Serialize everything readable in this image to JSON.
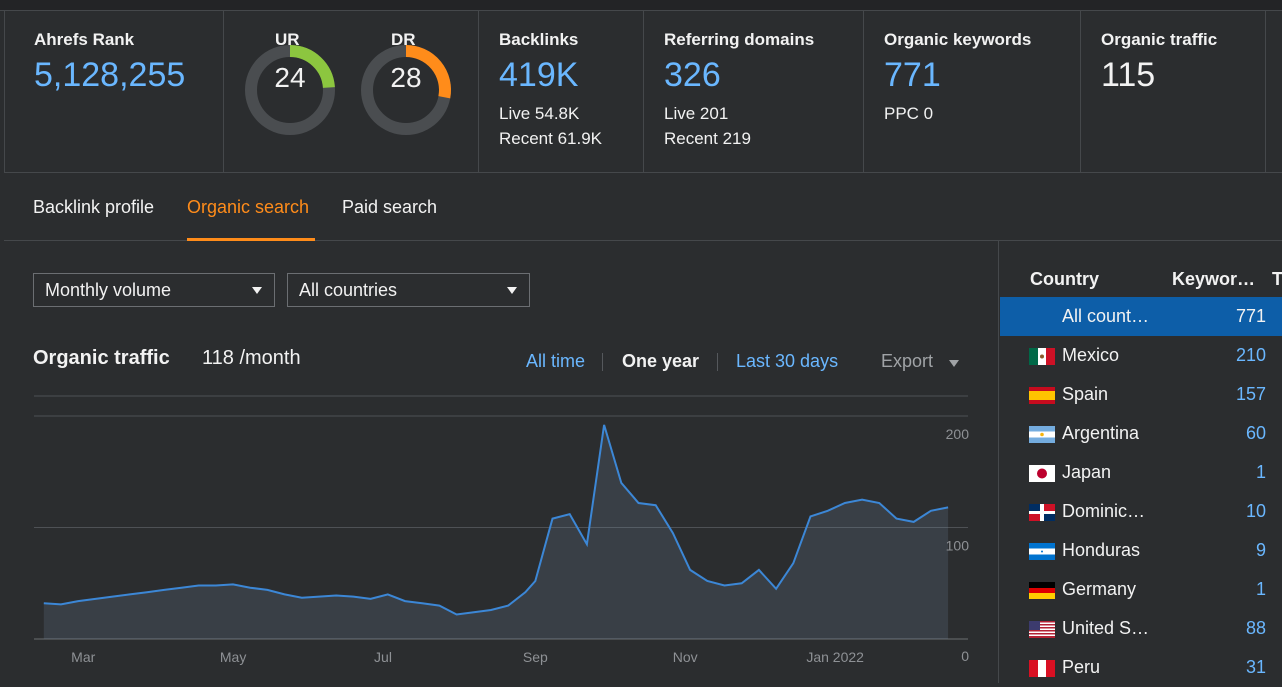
{
  "metrics": {
    "ahrefs_rank": {
      "label": "Ahrefs Rank",
      "value": "5,128,255"
    },
    "ur": {
      "label": "UR",
      "value": "24",
      "percent": 24,
      "color": "#8cc63f"
    },
    "dr": {
      "label": "DR",
      "value": "28",
      "percent": 28,
      "color": "#ff8c1a"
    },
    "backlinks": {
      "label": "Backlinks",
      "value": "419K",
      "live": "Live 54.8K",
      "recent": "Recent 61.9K"
    },
    "referring_domains": {
      "label": "Referring domains",
      "value": "326",
      "live": "Live 201",
      "recent": "Recent 219"
    },
    "organic_keywords": {
      "label": "Organic keywords",
      "value": "771",
      "ppc": "PPC 0"
    },
    "organic_traffic": {
      "label": "Organic traffic",
      "value": "115"
    }
  },
  "tabs": [
    "Backlink profile",
    "Organic search",
    "Paid search"
  ],
  "active_tab": "Organic search",
  "filters": {
    "volume": "Monthly volume",
    "countries": "All countries"
  },
  "chart_header": {
    "title": "Organic traffic",
    "subtitle": "118 /month",
    "ranges": [
      "All time",
      "One year",
      "Last 30 days"
    ],
    "selected_range": "One year",
    "export": "Export"
  },
  "chart_data": {
    "type": "area",
    "title": "Organic traffic",
    "x_tick_labels": [
      "Mar",
      "May",
      "Jul",
      "Sep",
      "Nov",
      "Jan 2022"
    ],
    "y_tick_labels": [
      "200",
      "100",
      "0"
    ],
    "ylim": [
      0,
      200
    ],
    "series": [
      {
        "x": [
          "2021-02-15",
          "2021-02-22",
          "2021-03-01",
          "2021-03-08",
          "2021-03-15",
          "2021-03-22",
          "2021-03-29",
          "2021-04-05",
          "2021-04-12",
          "2021-04-19",
          "2021-04-26",
          "2021-05-03",
          "2021-05-10",
          "2021-05-17",
          "2021-05-24",
          "2021-05-31",
          "2021-06-07",
          "2021-06-14",
          "2021-06-21",
          "2021-06-28",
          "2021-07-05",
          "2021-07-12",
          "2021-07-19",
          "2021-07-26",
          "2021-08-02",
          "2021-08-09",
          "2021-08-16",
          "2021-08-23",
          "2021-08-30",
          "2021-09-03",
          "2021-09-10",
          "2021-09-17",
          "2021-09-24",
          "2021-10-01",
          "2021-10-08",
          "2021-10-15",
          "2021-10-22",
          "2021-10-29",
          "2021-11-05",
          "2021-11-12",
          "2021-11-19",
          "2021-11-26",
          "2021-12-03",
          "2021-12-10",
          "2021-12-17",
          "2021-12-24",
          "2021-12-31",
          "2022-01-07",
          "2022-01-14",
          "2022-01-21",
          "2022-01-28",
          "2022-02-04",
          "2022-02-11",
          "2022-02-18"
        ],
        "y": [
          32,
          31,
          34,
          36,
          38,
          40,
          42,
          44,
          46,
          48,
          48,
          49,
          46,
          44,
          40,
          37,
          38,
          39,
          38,
          36,
          40,
          34,
          32,
          30,
          22,
          24,
          26,
          30,
          42,
          52,
          108,
          112,
          85,
          192,
          140,
          122,
          120,
          95,
          62,
          52,
          48,
          50,
          62,
          45,
          68,
          110,
          115,
          122,
          125,
          122,
          108,
          105,
          115,
          118
        ]
      }
    ],
    "grid": true
  },
  "countries_table": {
    "headers": [
      "Country",
      "Keywor…",
      "T"
    ],
    "rows": [
      {
        "name": "All count…",
        "keywords": "771",
        "flag": "none"
      },
      {
        "name": "Mexico",
        "keywords": "210",
        "flag": "mx"
      },
      {
        "name": "Spain",
        "keywords": "157",
        "flag": "es"
      },
      {
        "name": "Argentina",
        "keywords": "60",
        "flag": "ar"
      },
      {
        "name": "Japan",
        "keywords": "1",
        "flag": "jp"
      },
      {
        "name": "Dominic…",
        "keywords": "10",
        "flag": "do"
      },
      {
        "name": "Honduras",
        "keywords": "9",
        "flag": "hn"
      },
      {
        "name": "Germany",
        "keywords": "1",
        "flag": "de"
      },
      {
        "name": "United S…",
        "keywords": "88",
        "flag": "us"
      },
      {
        "name": "Peru",
        "keywords": "31",
        "flag": "pe"
      }
    ]
  }
}
